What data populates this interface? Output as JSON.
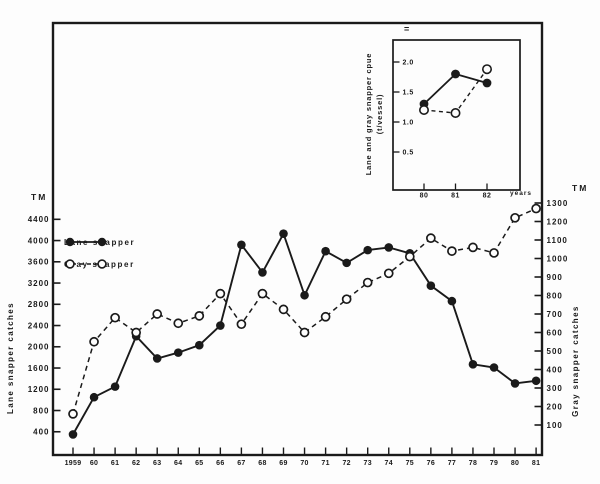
{
  "figure": {
    "background": "#fdfdfd",
    "ink": "#1a1a1a"
  },
  "main_chart": {
    "left_axis": {
      "unit": "TM",
      "title": "Lane snapper catches",
      "tick_values": [
        4400,
        4000,
        3600,
        3200,
        2800,
        2400,
        2000,
        1600,
        1200,
        800,
        400
      ]
    },
    "right_axis": {
      "unit": "TM",
      "title": "Gray snapper catches",
      "tick_values": [
        1300,
        1200,
        1100,
        1000,
        900,
        800,
        700,
        600,
        500,
        400,
        300,
        200,
        100
      ]
    },
    "x_axis": {
      "tick_labels": [
        "1959",
        "60",
        "61",
        "62",
        "63",
        "64",
        "65",
        "66",
        "67",
        "68",
        "69",
        "70",
        "71",
        "72",
        "73",
        "74",
        "75",
        "76",
        "77",
        "78",
        "79",
        "80",
        "81"
      ]
    },
    "legend": {
      "items": [
        {
          "label": "Lane snapper",
          "marker": "filled-circle-solid-line"
        },
        {
          "label": "Gray snapper",
          "marker": "open-circle-dashed-line"
        }
      ]
    }
  },
  "inset_chart": {
    "mark": "=",
    "y_axis": {
      "title_line1": "Lane and gray snapper cpue",
      "title_line2": "(t/vessel)",
      "tick_labels": [
        "2.0",
        "1.5",
        "1.0",
        "0.5"
      ],
      "tick_values": [
        2.0,
        1.5,
        1.0,
        0.5
      ]
    },
    "x_axis": {
      "tick_labels": [
        "80",
        "81",
        "82"
      ],
      "unit": "years"
    }
  },
  "chart_data": [
    {
      "id": "main",
      "type": "line",
      "x": [
        1959,
        1960,
        1961,
        1962,
        1963,
        1964,
        1965,
        1966,
        1967,
        1968,
        1969,
        1970,
        1971,
        1972,
        1973,
        1974,
        1975,
        1976,
        1977,
        1978,
        1979,
        1980,
        1981
      ],
      "series": [
        {
          "name": "Lane snapper",
          "axis": "left",
          "line": "solid",
          "marker": "filled",
          "values": [
            350,
            1050,
            1250,
            2200,
            1780,
            1890,
            2030,
            2400,
            3920,
            3400,
            4130,
            2970,
            3800,
            3580,
            3820,
            3870,
            3760,
            3150,
            2860,
            1670,
            1610,
            1310,
            1360
          ]
        },
        {
          "name": "Gray snapper",
          "axis": "right",
          "line": "dashed",
          "marker": "open",
          "values": [
            160,
            550,
            680,
            600,
            700,
            650,
            690,
            810,
            645,
            810,
            725,
            600,
            685,
            780,
            870,
            920,
            1010,
            1110,
            1040,
            1060,
            1030,
            1220,
            1270
          ]
        }
      ],
      "left_ylabel": "Lane snapper catches (TM)",
      "right_ylabel": "Gray snapper catches (TM)",
      "left_ylim": [
        0,
        4750
      ],
      "right_ylim": [
        0,
        1390
      ],
      "legend_position": "upper-left",
      "grid": false
    },
    {
      "id": "inset",
      "type": "line",
      "x": [
        1980,
        1981,
        1982
      ],
      "series": [
        {
          "name": "Lane snapper cpue",
          "line": "solid",
          "marker": "filled",
          "values": [
            1.3,
            1.8,
            1.65
          ]
        },
        {
          "name": "Gray snapper cpue",
          "line": "dashed",
          "marker": "open",
          "values": [
            1.2,
            1.15,
            1.88
          ]
        }
      ],
      "ylabel": "Lane and gray snapper cpue (t/vessel)",
      "xlabel": "years",
      "ylim": [
        0,
        2.35
      ],
      "grid": false
    }
  ]
}
